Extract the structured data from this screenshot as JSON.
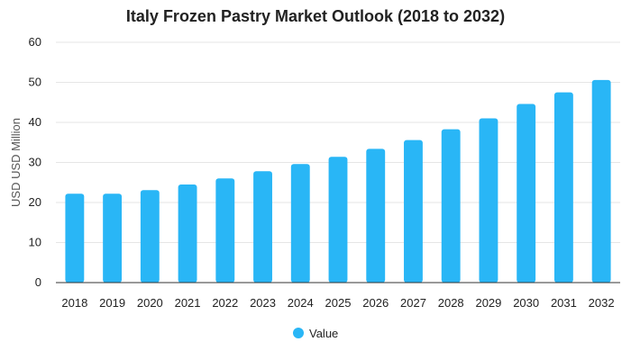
{
  "chart_data": {
    "type": "bar",
    "title": "Italy Frozen Pastry Market Outlook (2018 to 2032)",
    "xlabel": "",
    "ylabel": "USD USD Million",
    "categories": [
      "2018",
      "2019",
      "2020",
      "2021",
      "2022",
      "2023",
      "2024",
      "2025",
      "2026",
      "2027",
      "2028",
      "2029",
      "2030",
      "2031",
      "2032"
    ],
    "series": [
      {
        "name": "Value",
        "color": "#29b6f6",
        "values": [
          22.2,
          22.2,
          23.1,
          24.5,
          26.0,
          27.8,
          29.6,
          31.4,
          33.4,
          35.6,
          38.3,
          41.0,
          44.6,
          47.5,
          50.6
        ]
      }
    ],
    "ylim": [
      0,
      60
    ],
    "yticks": [
      0,
      10,
      20,
      30,
      40,
      50,
      60
    ],
    "grid": true,
    "legend_position": "bottom-center"
  }
}
